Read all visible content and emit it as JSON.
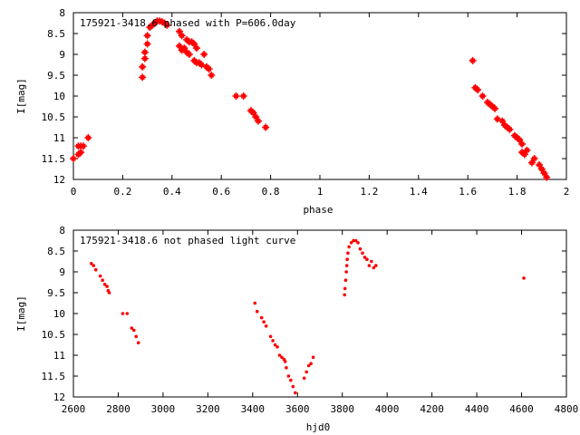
{
  "chart_data": [
    {
      "type": "scatter",
      "title": "175921-3418.6 phased with P=606.0day",
      "xlabel": "phase",
      "ylabel": "I[mag]",
      "xlim": [
        0,
        2
      ],
      "ylim": [
        12,
        8
      ],
      "y_inverted": true,
      "xticks": [
        "0",
        "0.2",
        "0.4",
        "0.6",
        "0.8",
        "1",
        "1.2",
        "1.4",
        "1.6",
        "1.8",
        "2"
      ],
      "yticks": [
        "8",
        "8.5",
        "9",
        "9.5",
        "10",
        "10.5",
        "11",
        "11.5",
        "12"
      ],
      "xtick_values": [
        0,
        0.2,
        0.4,
        0.6,
        0.8,
        1.0,
        1.2,
        1.4,
        1.6,
        1.8,
        2.0
      ],
      "ytick_values": [
        8,
        8.5,
        9,
        9.5,
        10,
        10.5,
        11,
        11.5,
        12
      ],
      "marker_color": "#ff0000",
      "marker": "plus-box",
      "grid": false,
      "series": [
        {
          "x": [
            0.0,
            0.02,
            0.02,
            0.03,
            0.03,
            0.04,
            0.06,
            0.28,
            0.28,
            0.29,
            0.29,
            0.3,
            0.3,
            0.31,
            0.32,
            0.33,
            0.34,
            0.35,
            0.36,
            0.37,
            0.38,
            0.43,
            0.43,
            0.44,
            0.44,
            0.45,
            0.46,
            0.46,
            0.47,
            0.47,
            0.48,
            0.49,
            0.49,
            0.5,
            0.5,
            0.51,
            0.52,
            0.53,
            0.54,
            0.55,
            0.56,
            0.66,
            0.69,
            0.72,
            0.73,
            0.74,
            0.75,
            0.78,
            1.62,
            1.63,
            1.64,
            1.66,
            1.68,
            1.69,
            1.7,
            1.71,
            1.72,
            1.74,
            1.75,
            1.76,
            1.77,
            1.79,
            1.8,
            1.81,
            1.82,
            1.82,
            1.83,
            1.84,
            1.86,
            1.87,
            1.89,
            1.9,
            1.91,
            1.92
          ],
          "y": [
            11.5,
            11.4,
            11.2,
            11.35,
            11.2,
            11.2,
            11.0,
            9.55,
            9.3,
            9.1,
            8.95,
            8.75,
            8.55,
            8.35,
            8.3,
            8.25,
            8.2,
            8.2,
            8.22,
            8.25,
            8.3,
            8.45,
            8.8,
            8.55,
            8.9,
            8.85,
            8.65,
            8.95,
            8.7,
            9.0,
            8.7,
            9.15,
            8.75,
            9.2,
            8.85,
            9.2,
            9.25,
            9.0,
            9.3,
            9.35,
            9.5,
            10.0,
            10.0,
            10.35,
            10.4,
            10.5,
            10.6,
            10.75,
            9.15,
            9.8,
            9.85,
            10.0,
            10.15,
            10.2,
            10.25,
            10.3,
            10.55,
            10.6,
            10.7,
            10.75,
            10.8,
            10.95,
            11.0,
            11.05,
            11.15,
            11.35,
            11.4,
            11.3,
            11.6,
            11.5,
            11.65,
            11.75,
            11.85,
            11.95
          ]
        }
      ]
    },
    {
      "type": "scatter",
      "title": "175921-3418.6 not phased light curve",
      "xlabel": "hjd0",
      "ylabel": "I[mag]",
      "xlim": [
        2600,
        4800
      ],
      "ylim": [
        12,
        8
      ],
      "y_inverted": true,
      "xticks": [
        "2600",
        "2800",
        "3000",
        "3200",
        "3400",
        "3600",
        "3800",
        "4000",
        "4200",
        "4400",
        "4600",
        "4800"
      ],
      "yticks": [
        "8",
        "8.5",
        "9",
        "9.5",
        "10",
        "10.5",
        "11",
        "11.5",
        "12"
      ],
      "xtick_values": [
        2600,
        2800,
        3000,
        3200,
        3400,
        3600,
        3800,
        4000,
        4200,
        4400,
        4600,
        4800
      ],
      "ytick_values": [
        8,
        8.5,
        9,
        9.5,
        10,
        10.5,
        11,
        11.5,
        12
      ],
      "marker_color": "#ff0000",
      "marker": "dot",
      "grid": false,
      "series": [
        {
          "x": [
            2680,
            2690,
            2700,
            2720,
            2730,
            2740,
            2750,
            2755,
            2760,
            2820,
            2840,
            2860,
            2870,
            2880,
            2890,
            3410,
            3420,
            3440,
            3450,
            3460,
            3480,
            3490,
            3500,
            3510,
            3520,
            3530,
            3540,
            3545,
            3550,
            3560,
            3570,
            3580,
            3590,
            3630,
            3640,
            3650,
            3660,
            3670,
            3810,
            3812,
            3815,
            3818,
            3820,
            3822,
            3825,
            3830,
            3840,
            3850,
            3860,
            3870,
            3880,
            3890,
            3900,
            3910,
            3920,
            3930,
            3940,
            3950,
            4610
          ],
          "y": [
            8.8,
            8.85,
            8.95,
            9.1,
            9.2,
            9.3,
            9.35,
            9.45,
            9.5,
            10.0,
            10.0,
            10.35,
            10.4,
            10.55,
            10.7,
            9.75,
            9.95,
            10.1,
            10.2,
            10.3,
            10.55,
            10.65,
            10.75,
            10.8,
            11.0,
            11.05,
            11.1,
            11.15,
            11.3,
            11.5,
            11.6,
            11.75,
            11.9,
            11.55,
            11.4,
            11.25,
            11.2,
            11.05,
            9.55,
            9.4,
            9.2,
            9.0,
            8.85,
            8.7,
            8.55,
            8.4,
            8.3,
            8.25,
            8.25,
            8.3,
            8.45,
            8.55,
            8.65,
            8.7,
            8.85,
            8.75,
            8.9,
            8.85,
            9.15
          ]
        }
      ]
    }
  ]
}
